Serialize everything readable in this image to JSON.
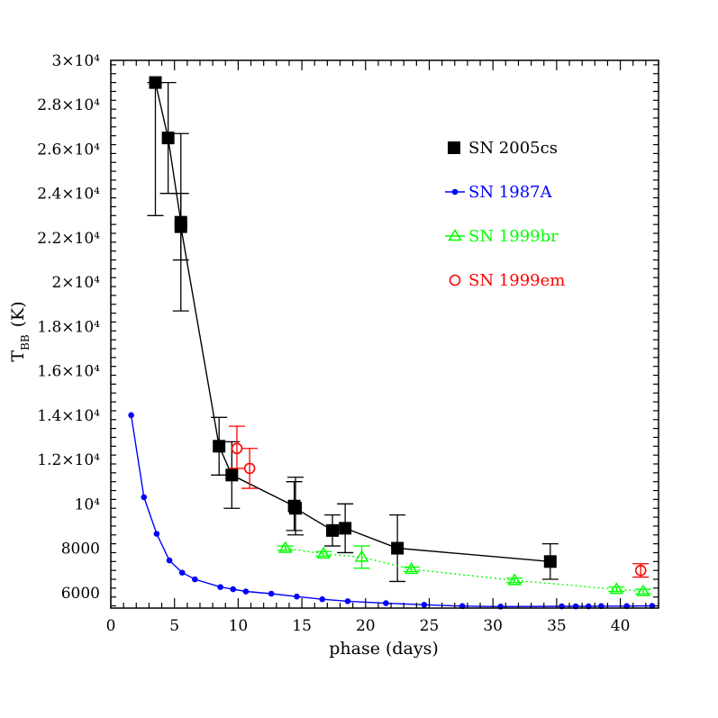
{
  "chart_data": {
    "type": "scatter",
    "xlabel": "phase (days)",
    "ylabel_main": "T",
    "ylabel_sub": "BB",
    "ylabel_unit": "(K)",
    "xlim": [
      0,
      43
    ],
    "ylim": [
      5300,
      30000
    ],
    "x_ticks": [
      {
        "v": 0,
        "label": "0"
      },
      {
        "v": 5,
        "label": "5"
      },
      {
        "v": 10,
        "label": "10"
      },
      {
        "v": 15,
        "label": "15"
      },
      {
        "v": 20,
        "label": "20"
      },
      {
        "v": 25,
        "label": "25"
      },
      {
        "v": 30,
        "label": "30"
      },
      {
        "v": 35,
        "label": "35"
      },
      {
        "v": 40,
        "label": "40"
      }
    ],
    "y_ticks": [
      {
        "v": 6000,
        "label": "6000"
      },
      {
        "v": 8000,
        "label": "8000"
      },
      {
        "v": 10000,
        "label": "10⁴"
      },
      {
        "v": 12000,
        "label": "1.2×10⁴"
      },
      {
        "v": 14000,
        "label": "1.4×10⁴"
      },
      {
        "v": 16000,
        "label": "1.6×10⁴"
      },
      {
        "v": 18000,
        "label": "1.8×10⁴"
      },
      {
        "v": 20000,
        "label": "2×10⁴"
      },
      {
        "v": 22000,
        "label": "2.2×10⁴"
      },
      {
        "v": 24000,
        "label": "2.4×10⁴"
      },
      {
        "v": 26000,
        "label": "2.6×10⁴"
      },
      {
        "v": 28000,
        "label": "2.8×10⁴"
      },
      {
        "v": 30000,
        "label": "3×10⁴"
      }
    ],
    "series": [
      {
        "name": "SN 2005cs",
        "color": "#000000",
        "marker": "filled-square",
        "line": "solid",
        "points": [
          {
            "x": 3.5,
            "y": 29000,
            "lo": 23000,
            "hi": 29000
          },
          {
            "x": 4.5,
            "y": 26500,
            "lo": 24000,
            "hi": 29000
          },
          {
            "x": 5.5,
            "y": 22700,
            "lo": 21000,
            "hi": 24000
          },
          {
            "x": 5.5,
            "y": 22500,
            "lo": 18700,
            "hi": 26700
          },
          {
            "x": 8.5,
            "y": 12600,
            "lo": 11300,
            "hi": 13900
          },
          {
            "x": 9.5,
            "y": 11300,
            "lo": 9800,
            "hi": 12800
          },
          {
            "x": 14.4,
            "y": 9900,
            "lo": 8800,
            "hi": 11000
          },
          {
            "x": 14.5,
            "y": 9800,
            "lo": 8600,
            "hi": 11200
          },
          {
            "x": 17.4,
            "y": 8800,
            "lo": 8100,
            "hi": 9500
          },
          {
            "x": 18.4,
            "y": 8900,
            "lo": 7800,
            "hi": 10000
          },
          {
            "x": 22.5,
            "y": 8000,
            "lo": 6500,
            "hi": 9500
          },
          {
            "x": 34.5,
            "y": 7400,
            "lo": 6600,
            "hi": 8200
          }
        ]
      },
      {
        "name": "SN 1987A",
        "color": "#0000ff",
        "marker": "small-dot",
        "line": "solid",
        "points": [
          {
            "x": 1.6,
            "y": 14000
          },
          {
            "x": 2.6,
            "y": 10300
          },
          {
            "x": 3.6,
            "y": 8650
          },
          {
            "x": 4.6,
            "y": 7450
          },
          {
            "x": 5.6,
            "y": 6900
          },
          {
            "x": 6.6,
            "y": 6600
          },
          {
            "x": 8.6,
            "y": 6250
          },
          {
            "x": 9.6,
            "y": 6150
          },
          {
            "x": 10.6,
            "y": 6050
          },
          {
            "x": 12.6,
            "y": 5950
          },
          {
            "x": 14.6,
            "y": 5820
          },
          {
            "x": 16.6,
            "y": 5700
          },
          {
            "x": 18.6,
            "y": 5610
          },
          {
            "x": 21.6,
            "y": 5520
          },
          {
            "x": 24.6,
            "y": 5450
          },
          {
            "x": 27.6,
            "y": 5390
          },
          {
            "x": 30.6,
            "y": 5370
          },
          {
            "x": 35.4,
            "y": 5380
          },
          {
            "x": 36.5,
            "y": 5380
          },
          {
            "x": 37.5,
            "y": 5380
          },
          {
            "x": 38.5,
            "y": 5390
          },
          {
            "x": 40.5,
            "y": 5390
          },
          {
            "x": 42.5,
            "y": 5400
          }
        ]
      },
      {
        "name": "SN 1999br",
        "color": "#00ff00",
        "marker": "open-triangle",
        "line": "dotted",
        "points": [
          {
            "x": 13.7,
            "y": 8000,
            "lo": 7900,
            "hi": 8100
          },
          {
            "x": 16.7,
            "y": 7750,
            "lo": 7650,
            "hi": 7850
          },
          {
            "x": 19.7,
            "y": 7600,
            "lo": 7100,
            "hi": 8100
          },
          {
            "x": 23.6,
            "y": 7050,
            "lo": 6950,
            "hi": 7150
          },
          {
            "x": 31.7,
            "y": 6550,
            "lo": 6450,
            "hi": 6650
          },
          {
            "x": 39.7,
            "y": 6150,
            "lo": 6050,
            "hi": 6250
          },
          {
            "x": 41.8,
            "y": 6050,
            "lo": 5950,
            "hi": 6150
          }
        ]
      },
      {
        "name": "SN 1999em",
        "color": "#ff0000",
        "marker": "open-circle",
        "line": "none",
        "points": [
          {
            "x": 9.9,
            "y": 12500,
            "lo": 11600,
            "hi": 13500
          },
          {
            "x": 10.9,
            "y": 11600,
            "lo": 10700,
            "hi": 12500
          },
          {
            "x": 41.6,
            "y": 7000,
            "lo": 6700,
            "hi": 7300
          }
        ]
      }
    ]
  }
}
